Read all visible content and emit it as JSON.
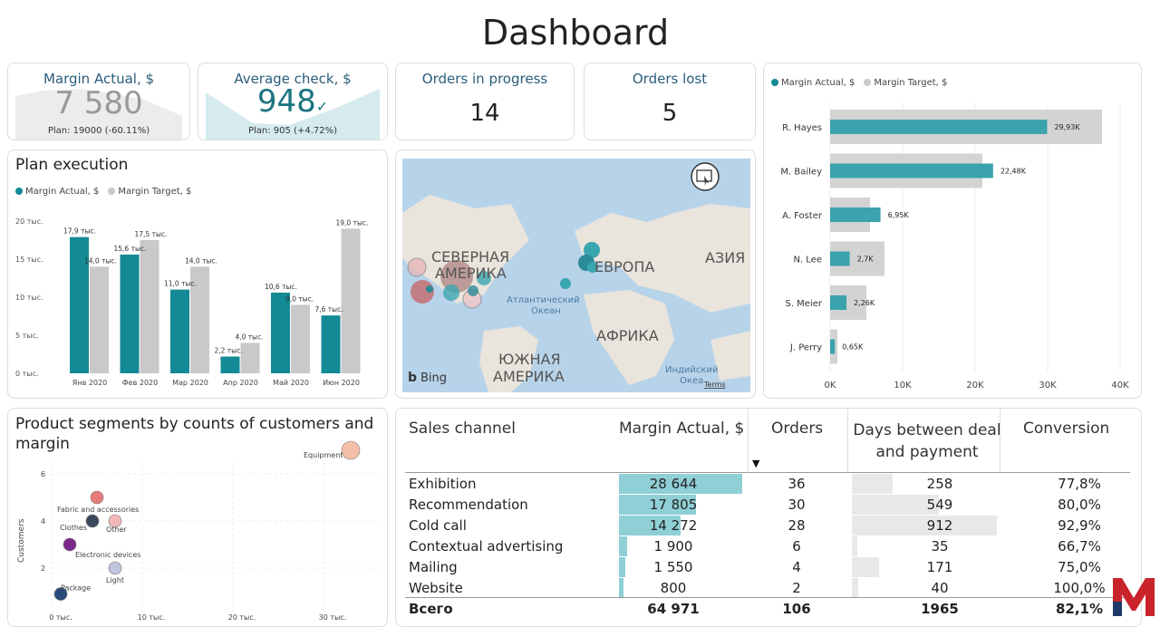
{
  "title": "Dashboard",
  "colors": {
    "teal": "#138a96",
    "grey": "#c9c9c9",
    "accent": "#2a5d7c"
  },
  "kpis": {
    "margin_actual": {
      "label": "Margin Actual, $",
      "value": "7 580",
      "plan": "Plan: 19000 (-60.11%)"
    },
    "average_check": {
      "label": "Average check, $",
      "value": "948",
      "mark": "✓",
      "plan": "Plan: 905 (+4.72%)"
    },
    "orders_in_progress": {
      "label": "Orders in progress",
      "value": "14"
    },
    "orders_lost": {
      "label": "Orders lost",
      "value": "5"
    }
  },
  "plan_execution": {
    "title": "Plan execution",
    "legend": [
      "Margin Actual, $",
      "Margin Target, $"
    ],
    "chart_data": {
      "type": "bar",
      "categories": [
        "Янв 2020",
        "Фев 2020",
        "Мар 2020",
        "Апр 2020",
        "Май 2020",
        "Июн 2020"
      ],
      "series": [
        {
          "name": "Margin Actual, $",
          "values": [
            17.9,
            15.6,
            11.0,
            2.2,
            10.6,
            7.6
          ],
          "labels": [
            "17,9 тыс.",
            "15,6 тыс.",
            "11,0 тыс.",
            "2,2 тыс.",
            "10,6 тыс.",
            "7,6 тыс."
          ]
        },
        {
          "name": "Margin Target, $",
          "values": [
            14.0,
            17.5,
            14.0,
            4.0,
            9.0,
            19.0
          ],
          "labels": [
            "14,0 тыс.",
            "17,5 тыс.",
            "14,0 тыс.",
            "4,0 тыс.",
            "9,0 тыс.",
            "19,0 тыс."
          ]
        }
      ],
      "yticks": [
        "0 тыс.",
        "5 тыс.",
        "10 тыс.",
        "15 тыс.",
        "20 тыс."
      ],
      "ylim": [
        0,
        20
      ]
    }
  },
  "map": {
    "labels": [
      "СЕВЕРНАЯ",
      "АМЕРИКА",
      "ЕВРОПА",
      "АЗИЯ",
      "Атлантический",
      "Океан",
      "АФРИКА",
      "ЮЖНАЯ",
      "АМЕРИКА",
      "Индийский",
      "Океа",
      "Terms",
      "Bing"
    ]
  },
  "managers": {
    "legend": [
      "Margin Actual, $",
      "Margin Target, $"
    ],
    "chart_data": {
      "type": "bar",
      "categories": [
        "R. Hayes",
        "M. Bailey",
        "A. Foster",
        "N. Lee",
        "S. Meier",
        "J. Perry"
      ],
      "series": [
        {
          "name": "Margin Actual, $",
          "values": [
            29.93,
            22.48,
            6.95,
            2.7,
            2.26,
            0.65
          ],
          "labels": [
            "29,93K",
            "22,48K",
            "6,95K",
            "2,7K",
            "2,26K",
            "0,65K"
          ]
        },
        {
          "name": "Margin Target, $",
          "values": [
            37.5,
            21.0,
            5.5,
            7.5,
            5.0,
            1.0
          ]
        }
      ],
      "xticks": [
        "0K",
        "10K",
        "20K",
        "30K",
        "40K"
      ],
      "xlim": [
        0,
        40
      ]
    }
  },
  "segments": {
    "title": "Product segments by counts of customers and margin",
    "chart_data": {
      "type": "scatter",
      "ylabel": "Customers",
      "yticks": [
        "2",
        "4",
        "6"
      ],
      "xticks": [
        "0 тыс.",
        "10 тыс.",
        "20 тыс.",
        "30 тыс."
      ],
      "points": [
        {
          "label": "Equipment",
          "x": 33,
          "y": 7,
          "color": "#f4c0a8"
        },
        {
          "label": "Fabric and accessories",
          "x": 5,
          "y": 5,
          "color": "#e87a7a"
        },
        {
          "label": "Clothes",
          "x": 4.5,
          "y": 4,
          "color": "#3b4a5a"
        },
        {
          "label": "Other",
          "x": 7,
          "y": 4,
          "color": "#f2b8b8"
        },
        {
          "label": "Electronic devices",
          "x": 2,
          "y": 3,
          "color": "#7a2a8a"
        },
        {
          "label": "Light",
          "x": 7,
          "y": 2,
          "color": "#c0c4dc"
        },
        {
          "label": "Package",
          "x": 1,
          "y": 0.9,
          "color": "#2a4a7c"
        }
      ]
    }
  },
  "sales_table": {
    "headers": [
      "Sales channel",
      "Margin Actual, $",
      "Orders",
      "Days between deal and payment",
      "Conversion"
    ],
    "header_days_line1": "Days between deal",
    "header_days_line2": "and payment",
    "sort_arrow": "▼",
    "rows": [
      {
        "channel": "Exhibition",
        "margin": "28 644",
        "margin_value": 28644,
        "orders": "36",
        "days": "258",
        "days_value": 258,
        "conversion": "77,8%"
      },
      {
        "channel": "Recommendation",
        "margin": "17 805",
        "margin_value": 17805,
        "orders": "30",
        "days": "549",
        "days_value": 549,
        "conversion": "80,0%"
      },
      {
        "channel": "Cold call",
        "margin": "14 272",
        "margin_value": 14272,
        "orders": "28",
        "days": "912",
        "days_value": 912,
        "conversion": "92,9%"
      },
      {
        "channel": "Contextual advertising",
        "margin": "1 900",
        "margin_value": 1900,
        "orders": "6",
        "days": "35",
        "days_value": 35,
        "conversion": "66,7%"
      },
      {
        "channel": "Mailing",
        "margin": "1 550",
        "margin_value": 1550,
        "orders": "4",
        "days": "171",
        "days_value": 171,
        "conversion": "75,0%"
      },
      {
        "channel": "Website",
        "margin": "800",
        "margin_value": 800,
        "orders": "2",
        "days": "40",
        "days_value": 40,
        "conversion": "100,0%"
      }
    ],
    "total": {
      "channel": "Всего",
      "margin": "64 971",
      "orders": "106",
      "days": "1965",
      "conversion": "82,1%"
    }
  },
  "logo": "M"
}
